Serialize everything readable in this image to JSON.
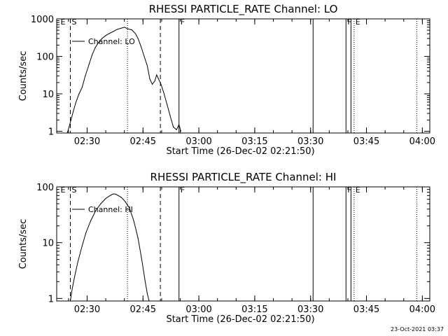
{
  "chart_data": [
    {
      "type": "line",
      "title": "RHESSI PARTICLE_RATE Channel: LO",
      "xlabel": "Start Time (26-Dec-02 02:21:50)",
      "ylabel": "Counts/sec",
      "y_scale": "log",
      "ylim": [
        0.9,
        1000
      ],
      "xlim": [
        "02:21:50",
        "04:02:00"
      ],
      "x_ticks": [
        "02:30",
        "02:45",
        "03:00",
        "03:15",
        "03:30",
        "03:45",
        "04:00"
      ],
      "y_ticks": [
        "1",
        "10",
        "100",
        "1000"
      ],
      "legend": {
        "label": "Channel: LO",
        "placement": "top-left"
      },
      "markers": [
        {
          "time": "02:22:30",
          "label": "E",
          "style": "none"
        },
        {
          "time": "02:25:30",
          "label": "S",
          "style": "dashed"
        },
        {
          "time": "02:40:50",
          "label": "",
          "style": "dotted"
        },
        {
          "time": "02:49:40",
          "label": "",
          "style": "dashed"
        },
        {
          "time": "02:54:40",
          "label": "F",
          "style": "solid"
        },
        {
          "time": "03:30:40",
          "label": "",
          "style": "solid"
        },
        {
          "time": "03:39:30",
          "label": "F",
          "style": "solid"
        },
        {
          "time": "03:40:50",
          "label": "",
          "style": "solid"
        },
        {
          "time": "03:41:40",
          "label": "E",
          "style": "dotted"
        },
        {
          "time": "03:58:30",
          "label": "",
          "style": "dotted"
        }
      ],
      "series": [
        {
          "name": "Channel: LO",
          "x": [
            "02:24:40",
            "02:25:10",
            "02:25:40",
            "02:26:20",
            "02:27:00",
            "02:27:50",
            "02:28:40",
            "02:29:30",
            "02:30:30",
            "02:31:20",
            "02:32:10",
            "02:33:00",
            "02:34:00",
            "02:35:00",
            "02:36:00",
            "02:37:00",
            "02:38:00",
            "02:39:00",
            "02:40:00",
            "02:41:00",
            "02:42:00",
            "02:43:00",
            "02:43:40",
            "02:44:30",
            "02:45:20",
            "02:46:10",
            "02:46:50",
            "02:47:30",
            "02:48:10",
            "02:48:40",
            "02:49:10",
            "02:49:50",
            "02:50:40",
            "02:51:30",
            "02:52:20",
            "02:53:10",
            "02:54:00",
            "02:54:40",
            "02:55:10"
          ],
          "values": [
            0.9,
            1.3,
            2,
            3.5,
            6,
            10,
            15,
            30,
            60,
            110,
            170,
            230,
            300,
            360,
            410,
            460,
            520,
            560,
            600,
            540,
            510,
            400,
            300,
            180,
            100,
            55,
            25,
            18,
            22,
            32,
            25,
            18,
            10,
            5,
            2.5,
            1.3,
            1.1,
            1.5,
            1.0
          ]
        }
      ]
    },
    {
      "type": "line",
      "title": "RHESSI PARTICLE_RATE Channel: HI",
      "xlabel": "Start Time (26-Dec-02 02:21:50)",
      "ylabel": "Counts/sec",
      "y_scale": "log",
      "ylim": [
        0.9,
        100
      ],
      "xlim": [
        "02:21:50",
        "04:02:00"
      ],
      "x_ticks": [
        "02:30",
        "02:45",
        "03:00",
        "03:15",
        "03:30",
        "03:45",
        "04:00"
      ],
      "y_ticks": [
        "1",
        "10",
        "100"
      ],
      "legend": {
        "label": "Channel: HI",
        "placement": "top-left"
      },
      "markers": [
        {
          "time": "02:22:30",
          "label": "E",
          "style": "none"
        },
        {
          "time": "02:25:30",
          "label": "S",
          "style": "dashed"
        },
        {
          "time": "02:40:50",
          "label": "",
          "style": "dotted"
        },
        {
          "time": "02:49:40",
          "label": "",
          "style": "dashed"
        },
        {
          "time": "02:54:40",
          "label": "F",
          "style": "solid"
        },
        {
          "time": "03:30:40",
          "label": "",
          "style": "solid"
        },
        {
          "time": "03:39:30",
          "label": "F",
          "style": "solid"
        },
        {
          "time": "03:40:50",
          "label": "",
          "style": "solid"
        },
        {
          "time": "03:41:40",
          "label": "E",
          "style": "dotted"
        },
        {
          "time": "03:58:30",
          "label": "",
          "style": "dotted"
        }
      ],
      "series": [
        {
          "name": "Channel: HI",
          "x": [
            "02:25:30",
            "02:26:00",
            "02:26:40",
            "02:27:30",
            "02:28:30",
            "02:29:40",
            "02:31:00",
            "02:32:20",
            "02:33:40",
            "02:35:00",
            "02:36:10",
            "02:37:00",
            "02:37:40",
            "02:38:20",
            "02:39:10",
            "02:40:10",
            "02:41:20",
            "02:42:30",
            "02:43:40",
            "02:44:40",
            "02:45:30",
            "02:46:10",
            "02:46:40"
          ],
          "values": [
            0.9,
            1.5,
            2.5,
            4.5,
            8,
            15,
            25,
            38,
            50,
            62,
            70,
            75,
            74,
            70,
            65,
            55,
            42,
            25,
            12,
            5,
            2.2,
            1.2,
            0.9
          ]
        }
      ]
    }
  ],
  "footer": {
    "timestamp": "23-Oct-2021 03:37"
  }
}
